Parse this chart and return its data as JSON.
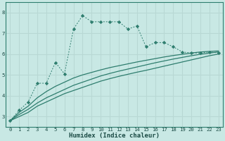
{
  "xlabel": "Humidex (Indice chaleur)",
  "bg_color": "#c8e8e4",
  "grid_color": "#b8d8d4",
  "line_color": "#2e7d6e",
  "xlim": [
    -0.5,
    23.5
  ],
  "ylim": [
    2.5,
    8.5
  ],
  "yticks": [
    3,
    4,
    5,
    6,
    7,
    8
  ],
  "xticks": [
    0,
    1,
    2,
    3,
    4,
    5,
    6,
    7,
    8,
    9,
    10,
    11,
    12,
    13,
    14,
    15,
    16,
    17,
    18,
    19,
    20,
    21,
    22,
    23
  ],
  "dotted_line": [
    [
      0,
      2.8
    ],
    [
      1,
      3.3
    ],
    [
      2,
      3.7
    ],
    [
      3,
      4.6
    ],
    [
      4,
      4.6
    ],
    [
      5,
      5.6
    ],
    [
      6,
      5.05
    ],
    [
      7,
      7.2
    ],
    [
      8,
      7.85
    ],
    [
      9,
      7.55
    ],
    [
      10,
      7.55
    ],
    [
      11,
      7.55
    ],
    [
      12,
      7.55
    ],
    [
      13,
      7.2
    ],
    [
      14,
      7.35
    ],
    [
      15,
      6.35
    ],
    [
      16,
      6.55
    ],
    [
      17,
      6.55
    ],
    [
      18,
      6.35
    ],
    [
      19,
      6.1
    ],
    [
      20,
      6.05
    ],
    [
      21,
      6.05
    ],
    [
      22,
      6.1
    ],
    [
      23,
      6.05
    ]
  ],
  "line1": [
    [
      0,
      2.8
    ],
    [
      1,
      3.0
    ],
    [
      2,
      3.2
    ],
    [
      3,
      3.5
    ],
    [
      4,
      3.7
    ],
    [
      5,
      3.9
    ],
    [
      6,
      4.1
    ],
    [
      7,
      4.25
    ],
    [
      8,
      4.4
    ],
    [
      9,
      4.55
    ],
    [
      10,
      4.7
    ],
    [
      11,
      4.82
    ],
    [
      12,
      4.93
    ],
    [
      13,
      5.03
    ],
    [
      14,
      5.13
    ],
    [
      15,
      5.22
    ],
    [
      16,
      5.32
    ],
    [
      17,
      5.42
    ],
    [
      18,
      5.52
    ],
    [
      19,
      5.62
    ],
    [
      20,
      5.72
    ],
    [
      21,
      5.82
    ],
    [
      22,
      5.92
    ],
    [
      23,
      6.0
    ]
  ],
  "line2": [
    [
      0,
      2.8
    ],
    [
      1,
      3.1
    ],
    [
      2,
      3.35
    ],
    [
      3,
      3.65
    ],
    [
      4,
      3.9
    ],
    [
      5,
      4.1
    ],
    [
      6,
      4.3
    ],
    [
      7,
      4.5
    ],
    [
      8,
      4.65
    ],
    [
      9,
      4.8
    ],
    [
      10,
      4.95
    ],
    [
      11,
      5.07
    ],
    [
      12,
      5.18
    ],
    [
      13,
      5.28
    ],
    [
      14,
      5.38
    ],
    [
      15,
      5.48
    ],
    [
      16,
      5.58
    ],
    [
      17,
      5.67
    ],
    [
      18,
      5.76
    ],
    [
      19,
      5.84
    ],
    [
      20,
      5.92
    ],
    [
      21,
      5.99
    ],
    [
      22,
      6.05
    ],
    [
      23,
      6.1
    ]
  ],
  "line3": [
    [
      0,
      2.8
    ],
    [
      1,
      3.2
    ],
    [
      2,
      3.5
    ],
    [
      3,
      3.9
    ],
    [
      4,
      4.2
    ],
    [
      5,
      4.45
    ],
    [
      6,
      4.65
    ],
    [
      7,
      4.85
    ],
    [
      8,
      5.0
    ],
    [
      9,
      5.12
    ],
    [
      10,
      5.24
    ],
    [
      11,
      5.35
    ],
    [
      12,
      5.44
    ],
    [
      13,
      5.53
    ],
    [
      14,
      5.62
    ],
    [
      15,
      5.7
    ],
    [
      16,
      5.78
    ],
    [
      17,
      5.86
    ],
    [
      18,
      5.93
    ],
    [
      19,
      5.99
    ],
    [
      20,
      6.05
    ],
    [
      21,
      6.1
    ],
    [
      22,
      6.13
    ],
    [
      23,
      6.15
    ]
  ]
}
